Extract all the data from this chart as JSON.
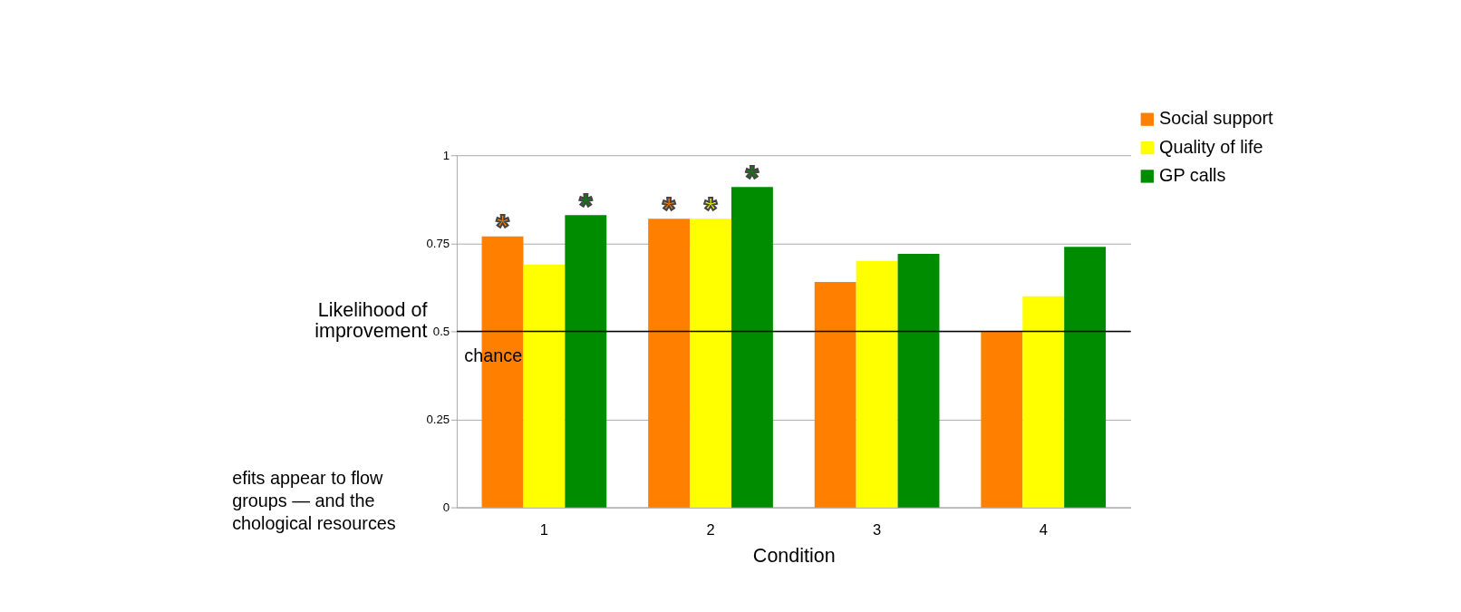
{
  "chart_data": {
    "type": "bar",
    "xlabel": "Condition",
    "ylabel": "Likelihood of\nimprovement",
    "categories": [
      "1",
      "2",
      "3",
      "4"
    ],
    "series": [
      {
        "name": "Social support",
        "color": "#ff7f00",
        "values": [
          0.77,
          0.82,
          0.64,
          0.5
        ],
        "value_labels": [
          "*",
          "*",
          null,
          null
        ]
      },
      {
        "name": "Quality of life",
        "color": "#ffff00",
        "values": [
          0.69,
          0.82,
          0.7,
          0.6
        ],
        "value_labels": [
          null,
          "*",
          null,
          null
        ]
      },
      {
        "name": "GP calls",
        "color": "#008c00",
        "values": [
          0.83,
          0.91,
          0.72,
          0.74
        ],
        "value_labels": [
          "*",
          "*",
          null,
          null
        ]
      }
    ],
    "ylim": [
      0,
      1
    ],
    "yticks": [
      0,
      0.25,
      0.5,
      0.75,
      1
    ],
    "grid": "y",
    "legend": "top right",
    "ref_lines": [
      {
        "axis": "y",
        "value": 0.5,
        "label": "chance",
        "color": "#000000"
      }
    ],
    "annotations": [
      "efits appear to flow\n groups — and the\nchological resources"
    ]
  }
}
